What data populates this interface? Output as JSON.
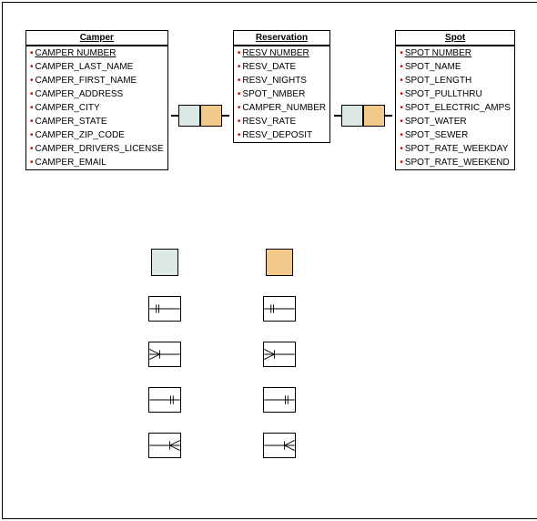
{
  "colors": {
    "light": "#dce8e4",
    "tan": "#f2c98a",
    "border": "#000000",
    "bullet": "#cc0000",
    "background": "#ffffff"
  },
  "entities": [
    {
      "name": "Camper",
      "attributes": [
        {
          "label": "CAMPER NUMBER",
          "pk": true
        },
        {
          "label": "CAMPER_LAST_NAME",
          "pk": false
        },
        {
          "label": "CAMPER_FIRST_NAME",
          "pk": false
        },
        {
          "label": "CAMPER_ADDRESS",
          "pk": false
        },
        {
          "label": "CAMPER_CITY",
          "pk": false
        },
        {
          "label": "CAMPER_STATE",
          "pk": false
        },
        {
          "label": "CAMPER_ZIP_CODE",
          "pk": false
        },
        {
          "label": "CAMPER_DRIVERS_LICENSE",
          "pk": false
        },
        {
          "label": "CAMPER_EMAIL",
          "pk": false
        }
      ]
    },
    {
      "name": "Reservation",
      "attributes": [
        {
          "label": "RESV NUMBER",
          "pk": true
        },
        {
          "label": "RESV_DATE",
          "pk": false
        },
        {
          "label": "RESV_NIGHTS",
          "pk": false
        },
        {
          "label": "SPOT_NMBER",
          "pk": false
        },
        {
          "label": "CAMPER_NUMBER",
          "pk": false
        },
        {
          "label": "RESV_RATE",
          "pk": false
        },
        {
          "label": "RESV_DEPOSIT",
          "pk": false
        }
      ]
    },
    {
      "name": "Spot",
      "attributes": [
        {
          "label": "SPOT NUMBER",
          "pk": true
        },
        {
          "label": "SPOT_NAME",
          "pk": false
        },
        {
          "label": "SPOT_LENGTH",
          "pk": false
        },
        {
          "label": "SPOT_PULLTHRU",
          "pk": false
        },
        {
          "label": "SPOT_ELECTRIC_AMPS",
          "pk": false
        },
        {
          "label": "SPOT_WATER",
          "pk": false
        },
        {
          "label": "SPOT_SEWER",
          "pk": false
        },
        {
          "label": "SPOT_RATE_WEEKDAY",
          "pk": false
        },
        {
          "label": "SPOT_RATE_WEEKEND",
          "pk": false
        }
      ]
    }
  ],
  "connectors": [
    {
      "left_color": "#dce8e4",
      "right_color": "#f2c98a"
    },
    {
      "left_color": "#dce8e4",
      "right_color": "#f2c98a"
    }
  ],
  "legend": {
    "swatches": [
      "#dce8e4",
      "#f2c98a"
    ],
    "notations": [
      [
        "one-mandatory-left",
        "one-mandatory-left"
      ],
      [
        "many-mandatory-left",
        "many-mandatory-left"
      ],
      [
        "one-mandatory-right",
        "one-mandatory-right"
      ],
      [
        "many-mandatory-right",
        "many-mandatory-right"
      ]
    ]
  }
}
